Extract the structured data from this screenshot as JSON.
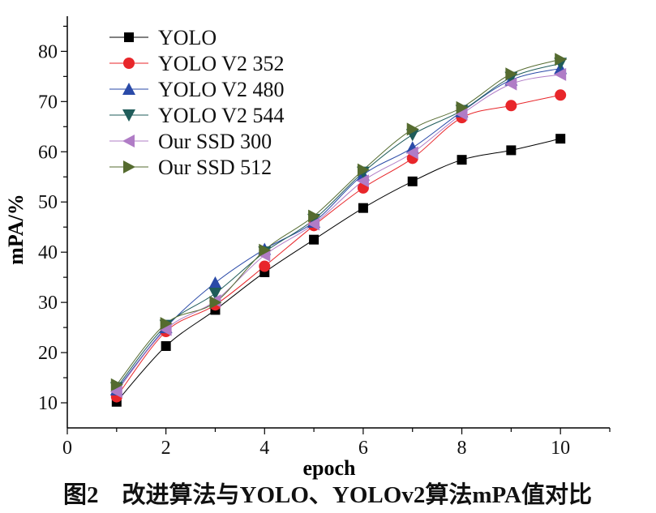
{
  "chart_data": {
    "type": "line",
    "xlabel": "epoch",
    "ylabel": "mPA/%",
    "xlim": [
      0,
      11
    ],
    "ylim": [
      5,
      87
    ],
    "xticks": [
      0,
      2,
      4,
      6,
      8,
      10
    ],
    "yticks": [
      10,
      20,
      30,
      40,
      50,
      60,
      70,
      80
    ],
    "grid": false,
    "legend_position": "top-left",
    "x": [
      1,
      2,
      3,
      4,
      5,
      6,
      7,
      8,
      9,
      10
    ],
    "series": [
      {
        "name": "YOLO",
        "marker": "square",
        "color": "#000000",
        "line_color": "#000000",
        "values": [
          10.2,
          21.3,
          28.5,
          36.0,
          42.5,
          48.8,
          54.1,
          58.4,
          60.3,
          62.6
        ]
      },
      {
        "name": "YOLO V2 352",
        "marker": "circle",
        "color": "#e8262a",
        "line_color": "#e8262a",
        "values": [
          11.2,
          24.2,
          29.5,
          37.2,
          45.3,
          52.8,
          58.7,
          66.8,
          69.2,
          71.3
        ]
      },
      {
        "name": "YOLO V2 480",
        "marker": "triangle-up",
        "color": "#2a4aa8",
        "line_color": "#2a4aa8",
        "values": [
          12.6,
          25.0,
          33.9,
          40.6,
          46.0,
          55.4,
          60.8,
          68.0,
          74.3,
          76.6
        ]
      },
      {
        "name": "YOLO V2 544",
        "marker": "triangle-down",
        "color": "#1f5c5a",
        "line_color": "#1f5c5a",
        "values": [
          13.0,
          25.4,
          31.8,
          40.0,
          46.5,
          55.9,
          63.4,
          68.2,
          74.8,
          77.6
        ]
      },
      {
        "name": "Our SSD 300",
        "marker": "triangle-left",
        "color": "#b07cc6",
        "line_color": "#b07cc6",
        "values": [
          12.2,
          24.6,
          30.3,
          39.4,
          45.6,
          54.2,
          59.8,
          67.5,
          73.5,
          75.4
        ]
      },
      {
        "name": "Our SSD 512",
        "marker": "triangle-right",
        "color": "#556b2f",
        "line_color": "#556b2f",
        "values": [
          13.6,
          25.8,
          30.0,
          40.4,
          47.2,
          56.4,
          64.5,
          68.8,
          75.5,
          78.4
        ]
      }
    ]
  },
  "caption": "图2　改进算法与YOLO、YOLOv2算法mPA值对比"
}
